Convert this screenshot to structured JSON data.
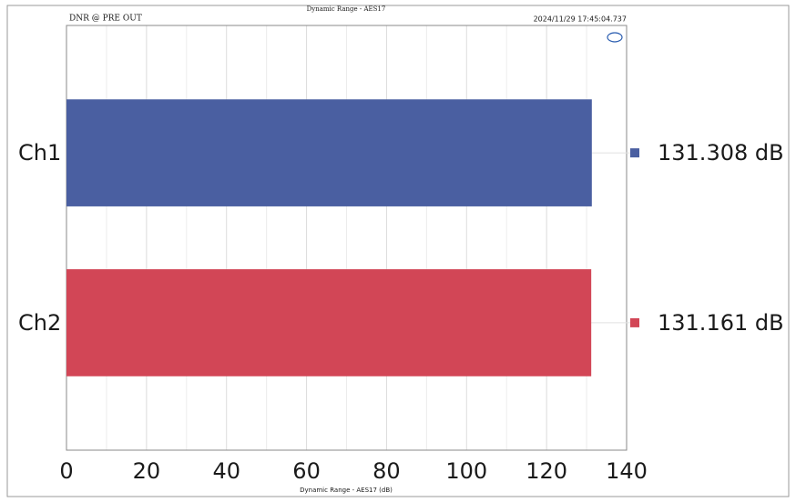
{
  "chart_data": {
    "type": "hbar",
    "title": "Dynamic Range - AES17",
    "subtitle": "DNR @ PRE OUT",
    "timestamp": "2024/11/29 17:45:04.737",
    "x_label": "Dynamic Range - AES17 (dB)",
    "categories": [
      "Ch1",
      "Ch2"
    ],
    "values": [
      131.308,
      131.161
    ],
    "value_labels": [
      "131.308 dB",
      "131.161 dB"
    ],
    "colors": [
      "#4a5fa1",
      "#d24656"
    ],
    "xlim": [
      0,
      140
    ],
    "xticks": [
      0,
      20,
      40,
      60,
      80,
      100,
      120,
      140
    ],
    "xminor": [
      10,
      30,
      50,
      70,
      90,
      110,
      130
    ],
    "grid": true
  }
}
